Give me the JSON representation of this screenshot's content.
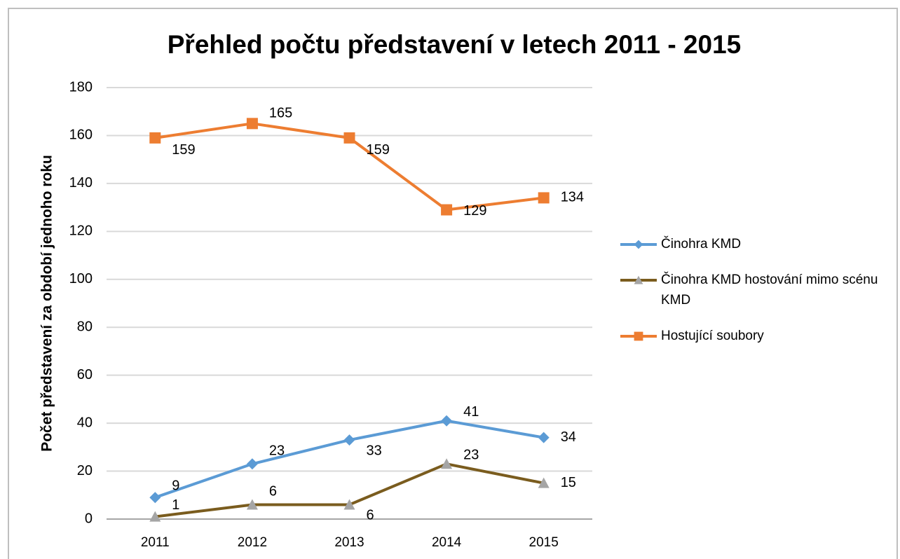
{
  "chart_data": {
    "type": "line",
    "title": "Přehled počtu představení v letech 2011 - 2015",
    "y_label": "Počet představení za období jednoho roku",
    "categories": [
      "2011",
      "2012",
      "2013",
      "2014",
      "2015"
    ],
    "series": [
      {
        "name": "Činohra KMD",
        "color": "#5b9bd5",
        "marker": "diamond",
        "marker_color": "#5b9bd5",
        "values": [
          9,
          23,
          33,
          41,
          34
        ]
      },
      {
        "name": "Činohra KMD hostování mimo scénu KMD",
        "color": "#7a5c1e",
        "marker": "triangle",
        "marker_color": "#a5a5a5",
        "values": [
          1,
          6,
          6,
          23,
          15
        ]
      },
      {
        "name": "Hostující soubory",
        "color": "#ed7d31",
        "marker": "square",
        "marker_color": "#ed7d31",
        "values": [
          159,
          165,
          159,
          129,
          134
        ]
      }
    ],
    "ylim": [
      0,
      180
    ],
    "yticks": [
      0,
      20,
      40,
      60,
      80,
      100,
      120,
      140,
      160,
      180
    ],
    "grid": true,
    "legend": "right",
    "data_labels": true
  }
}
